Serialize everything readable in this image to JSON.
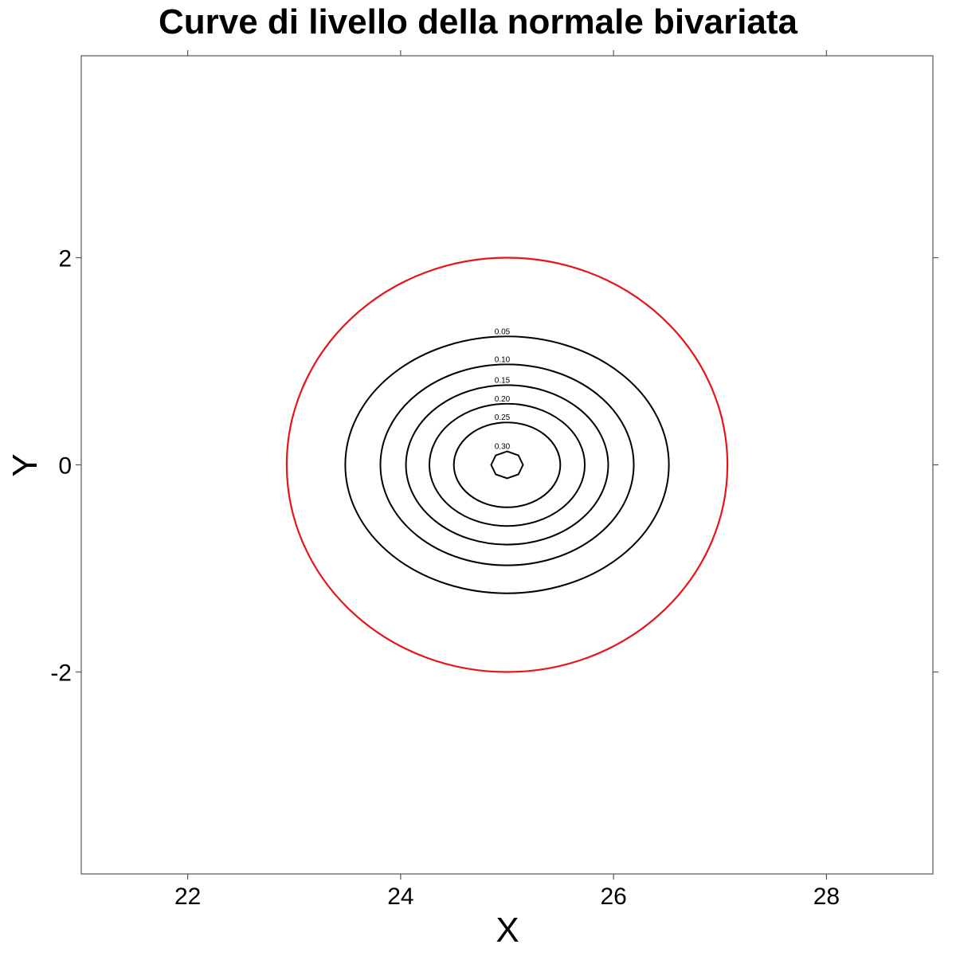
{
  "chart_data": {
    "type": "contour",
    "title": "Curve di livello della normale bivariata",
    "xlabel": "X",
    "ylabel": "Y",
    "xlim": [
      21.0,
      29.0
    ],
    "ylim": [
      -3.95,
      3.95
    ],
    "x_ticks": [
      22,
      24,
      26,
      28
    ],
    "y_ticks": [
      -2,
      0,
      2
    ],
    "x_tick_labels": [
      "22",
      "24",
      "26",
      "28"
    ],
    "y_tick_labels": [
      "-2",
      "0",
      "2"
    ],
    "center": {
      "x": 25,
      "y": 0
    },
    "contour_levels": [
      {
        "label": "0.05",
        "rx": 1.52,
        "ry": 1.24
      },
      {
        "label": "0.10",
        "rx": 1.19,
        "ry": 0.97
      },
      {
        "label": "0.15",
        "rx": 0.95,
        "ry": 0.77
      },
      {
        "label": "0.20",
        "rx": 0.73,
        "ry": 0.59
      },
      {
        "label": "0.25",
        "rx": 0.5,
        "ry": 0.41
      },
      {
        "label": "0.30",
        "rx": 0.15,
        "ry": 0.13
      }
    ],
    "boundary_circle": {
      "x": 25,
      "y": 0,
      "rx": 2.07,
      "ry": 2.0,
      "color": "#e8141c"
    },
    "contour_color": "#000000",
    "grid": false,
    "legend": "none"
  }
}
